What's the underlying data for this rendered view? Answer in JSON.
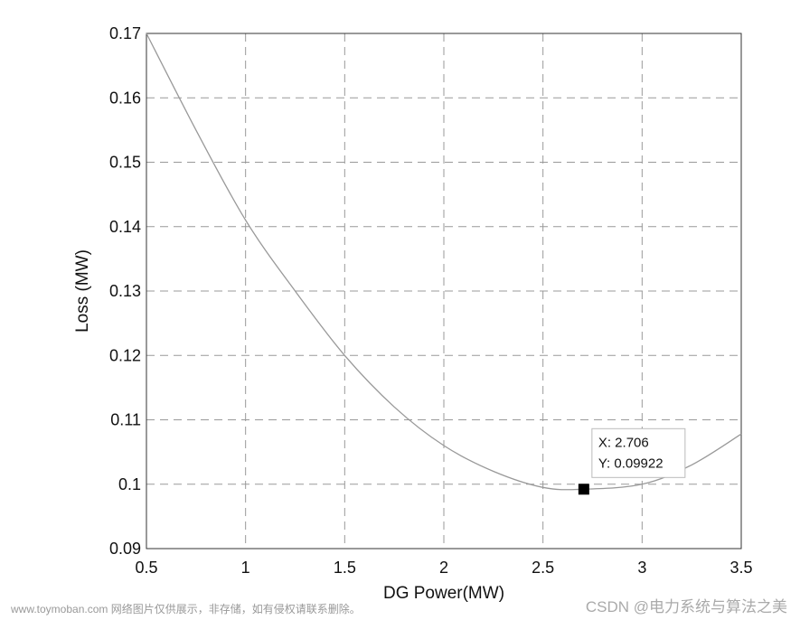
{
  "chart_data": {
    "type": "line",
    "xlabel": "DG Power(MW)",
    "ylabel": "Loss (MW)",
    "xlim": [
      0.5,
      3.5
    ],
    "ylim": [
      0.09,
      0.17
    ],
    "x_ticks": [
      "0.5",
      "1",
      "1.5",
      "2",
      "2.5",
      "3",
      "3.5"
    ],
    "y_ticks": [
      "0.09",
      "0.1",
      "0.11",
      "0.12",
      "0.13",
      "0.14",
      "0.15",
      "0.16",
      "0.17"
    ],
    "grid": true,
    "grid_style": "dashed",
    "line_color": "#999999",
    "series": [
      {
        "x": [
          0.5,
          0.75,
          1.0,
          1.25,
          1.5,
          1.75,
          2.0,
          2.25,
          2.5,
          2.706,
          3.0,
          3.25,
          3.5
        ],
        "y": [
          0.17,
          0.155,
          0.141,
          0.13,
          0.12,
          0.112,
          0.106,
          0.102,
          0.0995,
          0.09922,
          0.1,
          0.103,
          0.1078
        ]
      }
    ],
    "datatip": {
      "x": 2.706,
      "y": 0.09922,
      "x_text": "X: 2.706",
      "y_text": "Y: 0.09922"
    }
  },
  "watermark": {
    "left": "www.toymoban.com 网络图片仅供展示，非存储，如有侵权请联系删除。",
    "right": "CSDN @电力系统与算法之美"
  }
}
